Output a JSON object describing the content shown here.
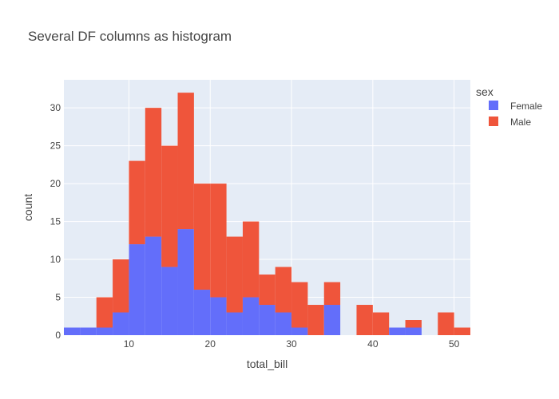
{
  "chart_data": {
    "type": "bar",
    "barmode": "stack",
    "title": "Several DF columns as histogram",
    "xlabel": "total_bill",
    "ylabel": "count",
    "xlim": [
      2,
      52
    ],
    "ylim": [
      0,
      33.7
    ],
    "x_ticks": [
      10,
      20,
      30,
      40,
      50
    ],
    "y_ticks": [
      0,
      5,
      10,
      15,
      20,
      25,
      30
    ],
    "grid": true,
    "bin_width": 2,
    "bins_start": [
      2,
      4,
      6,
      8,
      10,
      12,
      14,
      16,
      18,
      20,
      22,
      24,
      26,
      28,
      30,
      32,
      34,
      36,
      38,
      40,
      42,
      44,
      46,
      48,
      50
    ],
    "legend": {
      "title": "sex",
      "placement": "top-right"
    },
    "series": [
      {
        "name": "Female",
        "color": "#636efa",
        "values": [
          1,
          1,
          1,
          3,
          12,
          13,
          9,
          14,
          6,
          5,
          3,
          5,
          4,
          3,
          1,
          0,
          4,
          0,
          0,
          0,
          1,
          1,
          0,
          0,
          0
        ]
      },
      {
        "name": "Male",
        "color": "#ef553b",
        "values": [
          0,
          0,
          4,
          7,
          11,
          17,
          16,
          18,
          14,
          15,
          10,
          10,
          4,
          6,
          6,
          4,
          3,
          0,
          4,
          3,
          0,
          1,
          0,
          3,
          1
        ]
      }
    ]
  }
}
